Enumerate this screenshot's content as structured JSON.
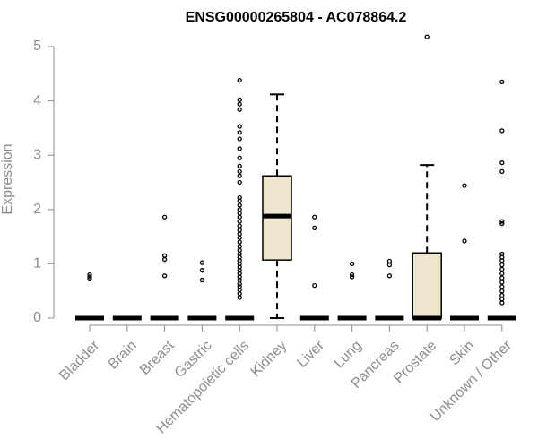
{
  "chart_data": {
    "type": "box",
    "title": "ENSG00000265804 - AC078864.2",
    "xlabel": "",
    "ylabel": "Expression",
    "ylim": [
      0,
      5
    ],
    "yticks": [
      0,
      1,
      2,
      3,
      4,
      5
    ],
    "grid": false,
    "legend": "none",
    "colors": {
      "box_fill": "#ede6cc",
      "stroke": "#000000",
      "axis": "#8c8c8c",
      "title": "#000000"
    },
    "categories": [
      "Bladder",
      "Brain",
      "Breast",
      "Gastric",
      "Hematopoietic cells",
      "Kidney",
      "Liver",
      "Lung",
      "Pancreas",
      "Prostate",
      "Skin",
      "Unknown / Other"
    ],
    "boxes": [
      {
        "category": "Bladder",
        "min": 0,
        "q1": 0,
        "median": 0,
        "q3": 0,
        "max": 0,
        "outliers": [
          0.72,
          0.76,
          0.8
        ]
      },
      {
        "category": "Brain",
        "min": 0,
        "q1": 0,
        "median": 0,
        "q3": 0,
        "max": 0,
        "outliers": []
      },
      {
        "category": "Breast",
        "min": 0,
        "q1": 0,
        "median": 0,
        "q3": 0,
        "max": 0,
        "outliers": [
          0.78,
          1.08,
          1.15,
          1.86
        ]
      },
      {
        "category": "Gastric",
        "min": 0,
        "q1": 0,
        "median": 0,
        "q3": 0,
        "max": 0,
        "outliers": [
          0.7,
          0.88,
          1.02
        ]
      },
      {
        "category": "Hematopoietic cells",
        "min": 0,
        "q1": 0,
        "median": 0,
        "q3": 0,
        "max": 0,
        "outliers": [
          0.38,
          0.45,
          0.52,
          0.58,
          0.63,
          0.7,
          0.76,
          0.82,
          0.88,
          0.94,
          1.0,
          1.06,
          1.12,
          1.18,
          1.25,
          1.32,
          1.4,
          1.48,
          1.55,
          1.62,
          1.7,
          1.78,
          1.86,
          1.93,
          2.0,
          2.08,
          2.16,
          2.22,
          2.5,
          2.62,
          2.7,
          2.8,
          2.95,
          3.12,
          3.3,
          3.42,
          3.53,
          3.84,
          3.94,
          4.02,
          4.38
        ]
      },
      {
        "category": "Kidney",
        "min": 0,
        "q1": 1.07,
        "median": 1.88,
        "q3": 2.62,
        "max": 4.12,
        "outliers": []
      },
      {
        "category": "Liver",
        "min": 0,
        "q1": 0,
        "median": 0,
        "q3": 0,
        "max": 0,
        "outliers": [
          0.6,
          1.66,
          1.86
        ]
      },
      {
        "category": "Lung",
        "min": 0,
        "q1": 0,
        "median": 0,
        "q3": 0,
        "max": 0,
        "outliers": [
          0.76,
          0.8,
          1.0
        ]
      },
      {
        "category": "Pancreas",
        "min": 0,
        "q1": 0,
        "median": 0,
        "q3": 0,
        "max": 0,
        "outliers": [
          0.78,
          0.98,
          1.05
        ]
      },
      {
        "category": "Prostate",
        "min": 0,
        "q1": 0,
        "median": 0,
        "q3": 1.2,
        "max": 2.82,
        "outliers": [
          5.18
        ]
      },
      {
        "category": "Skin",
        "min": 0,
        "q1": 0,
        "median": 0,
        "q3": 0,
        "max": 0,
        "outliers": [
          1.42,
          2.44
        ]
      },
      {
        "category": "Unknown / Other",
        "min": 0,
        "q1": 0,
        "median": 0,
        "q3": 0,
        "max": 0,
        "outliers": [
          0.28,
          0.35,
          0.42,
          0.5,
          0.58,
          0.66,
          0.74,
          0.82,
          0.9,
          0.98,
          1.06,
          1.12,
          1.18,
          1.74,
          1.78,
          2.7,
          2.86,
          3.45,
          4.35
        ]
      }
    ]
  }
}
